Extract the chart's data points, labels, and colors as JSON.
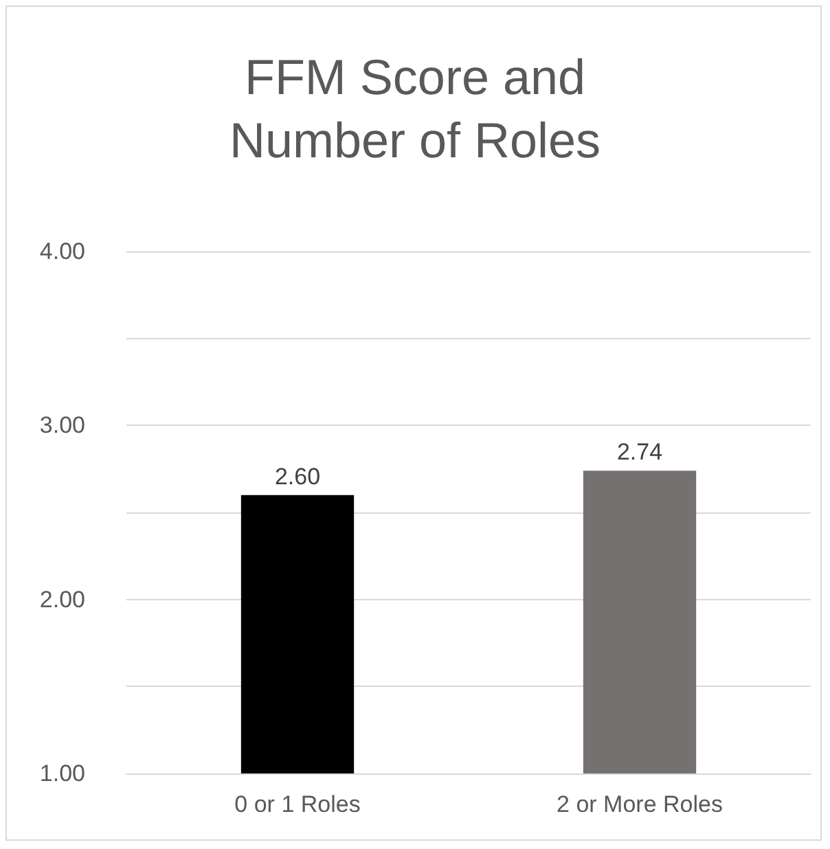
{
  "chart_data": {
    "type": "bar",
    "title": "FFM Score and\nNumber of Roles",
    "categories": [
      "0 or 1 Roles",
      "2 or More Roles"
    ],
    "values": [
      2.6,
      2.74
    ],
    "colors": [
      "#000000",
      "#767171"
    ],
    "value_labels": [
      "2.60",
      "2.74"
    ],
    "ylim": [
      1,
      4
    ],
    "yticks": [
      {
        "value": 1,
        "label": "1.00"
      },
      {
        "value": 1.5,
        "label": null
      },
      {
        "value": 2,
        "label": "2.00"
      },
      {
        "value": 2.5,
        "label": null
      },
      {
        "value": 3,
        "label": "3.00"
      },
      {
        "value": 3.5,
        "label": null
      },
      {
        "value": 4,
        "label": "4.00"
      }
    ],
    "grid": true
  }
}
